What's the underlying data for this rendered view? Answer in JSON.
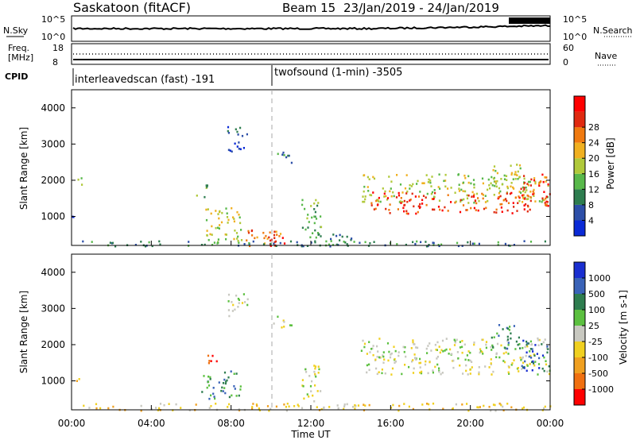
{
  "header": {
    "station": "Saskatoon (fitACF)",
    "beam": "Beam 15",
    "dates": "23/Jan/2019 - 24/Jan/2019"
  },
  "strip_sky": {
    "left_label": "N.Sky",
    "right_label": "N.Search",
    "left_ticks": [
      "10^5",
      "10^0"
    ],
    "right_ticks": [
      "10^5",
      "10^0"
    ]
  },
  "strip_freq": {
    "left_label_1": "Freq.",
    "left_label_2": "[MHz]",
    "right_label": "Nave",
    "left_ticks": [
      "18",
      "8"
    ],
    "right_ticks": [
      "60",
      "0"
    ]
  },
  "cpid": {
    "label": "CPID",
    "mode_1": "interleavedscan (fast) -191",
    "mode_2": "twofsound (1-min) -3505"
  },
  "x_axis": {
    "label": "Time UT",
    "ticks": [
      "00:00",
      "04:00",
      "08:00",
      "12:00",
      "16:00",
      "20:00",
      "00:00"
    ]
  },
  "chart_data": [
    {
      "type": "heatmap",
      "name": "power",
      "xlabel": "Time UT",
      "ylabel": "Slant Range [km]",
      "yticks": [
        1000,
        2000,
        3000,
        4000
      ],
      "colorbar": {
        "label": "Power [dB]",
        "ticks": [
          "4",
          "8",
          "12",
          "16",
          "20",
          "24",
          "28"
        ],
        "colors": [
          "#0a2ad6",
          "#2d4fa8",
          "#2e7d4f",
          "#58b84a",
          "#b0c93a",
          "#f0b020",
          "#f07a10",
          "#e02a10",
          "#ff0000"
        ]
      },
      "regions": [
        {
          "t": [
            0.0,
            0.5
          ],
          "r": [
            1900,
            2100
          ],
          "lvl": 3
        },
        {
          "t": [
            0.0,
            0.5
          ],
          "r": [
            1000,
            1150
          ],
          "lvl": 1
        },
        {
          "t": [
            6.5,
            8.5
          ],
          "r": [
            300,
            1300
          ],
          "lvl": 4
        },
        {
          "t": [
            6.2,
            6.8
          ],
          "r": [
            1500,
            1900
          ],
          "lvl": 3
        },
        {
          "t": [
            7.8,
            8.8
          ],
          "r": [
            2800,
            3500
          ],
          "lvl": 1
        },
        {
          "t": [
            8.5,
            10.5
          ],
          "r": [
            200,
            700
          ],
          "lvl": 6
        },
        {
          "t": [
            9.8,
            10.8
          ],
          "r": [
            200,
            500
          ],
          "lvl": 8
        },
        {
          "t": [
            10.0,
            11.0
          ],
          "r": [
            2500,
            2800
          ],
          "lvl": 2
        },
        {
          "t": [
            11.5,
            12.5
          ],
          "r": [
            400,
            1500
          ],
          "lvl": 3
        },
        {
          "t": [
            12.0,
            14.0
          ],
          "r": [
            200,
            600
          ],
          "lvl": 2
        },
        {
          "t": [
            14.5,
            24.0
          ],
          "r": [
            1400,
            2200
          ],
          "lvl": 4
        },
        {
          "t": [
            15.0,
            23.0
          ],
          "r": [
            1100,
            1700
          ],
          "lvl": 7
        },
        {
          "t": [
            21.0,
            22.5
          ],
          "r": [
            2000,
            2500
          ],
          "lvl": 4
        },
        {
          "t": [
            22.5,
            24.0
          ],
          "r": [
            1300,
            2200
          ],
          "lvl": 7
        },
        {
          "t": [
            0.0,
            24.0
          ],
          "r": [
            200,
            350
          ],
          "lvl": 2
        }
      ]
    },
    {
      "type": "heatmap",
      "name": "velocity",
      "xlabel": "Time UT",
      "ylabel": "Slant Range [km]",
      "yticks": [
        1000,
        2000,
        3000,
        4000
      ],
      "colorbar": {
        "label": "Velocity [m s-1]",
        "ticks": [
          "1000",
          "500",
          "100",
          "25",
          "-25",
          "-100",
          "-500",
          "-1000"
        ],
        "colors": [
          "#1a2fd0",
          "#3a63b8",
          "#2e7d4f",
          "#5cc040",
          "#c8c8c0",
          "#f0d020",
          "#f0a020",
          "#f07010",
          "#ff0000"
        ]
      },
      "regions": [
        {
          "t": [
            0.0,
            0.5
          ],
          "r": [
            1000,
            1150
          ],
          "lvl": 5
        },
        {
          "t": [
            6.5,
            8.5
          ],
          "r": [
            500,
            1300
          ],
          "lvl": 2
        },
        {
          "t": [
            6.8,
            7.4
          ],
          "r": [
            1500,
            1900
          ],
          "lvl": 7
        },
        {
          "t": [
            7.8,
            8.8
          ],
          "r": [
            2800,
            3500
          ],
          "lvl": 4
        },
        {
          "t": [
            10.0,
            11.0
          ],
          "r": [
            2500,
            2800
          ],
          "lvl": 4
        },
        {
          "t": [
            11.5,
            12.5
          ],
          "r": [
            400,
            1500
          ],
          "lvl": 4
        },
        {
          "t": [
            14.5,
            24.0
          ],
          "r": [
            1200,
            2200
          ],
          "lvl": 4
        },
        {
          "t": [
            21.0,
            22.5
          ],
          "r": [
            1900,
            2600
          ],
          "lvl": 2
        },
        {
          "t": [
            22.5,
            24.0
          ],
          "r": [
            1300,
            2200
          ],
          "lvl": 1
        },
        {
          "t": [
            0.0,
            24.0
          ],
          "r": [
            200,
            400
          ],
          "lvl": 5
        }
      ]
    }
  ]
}
